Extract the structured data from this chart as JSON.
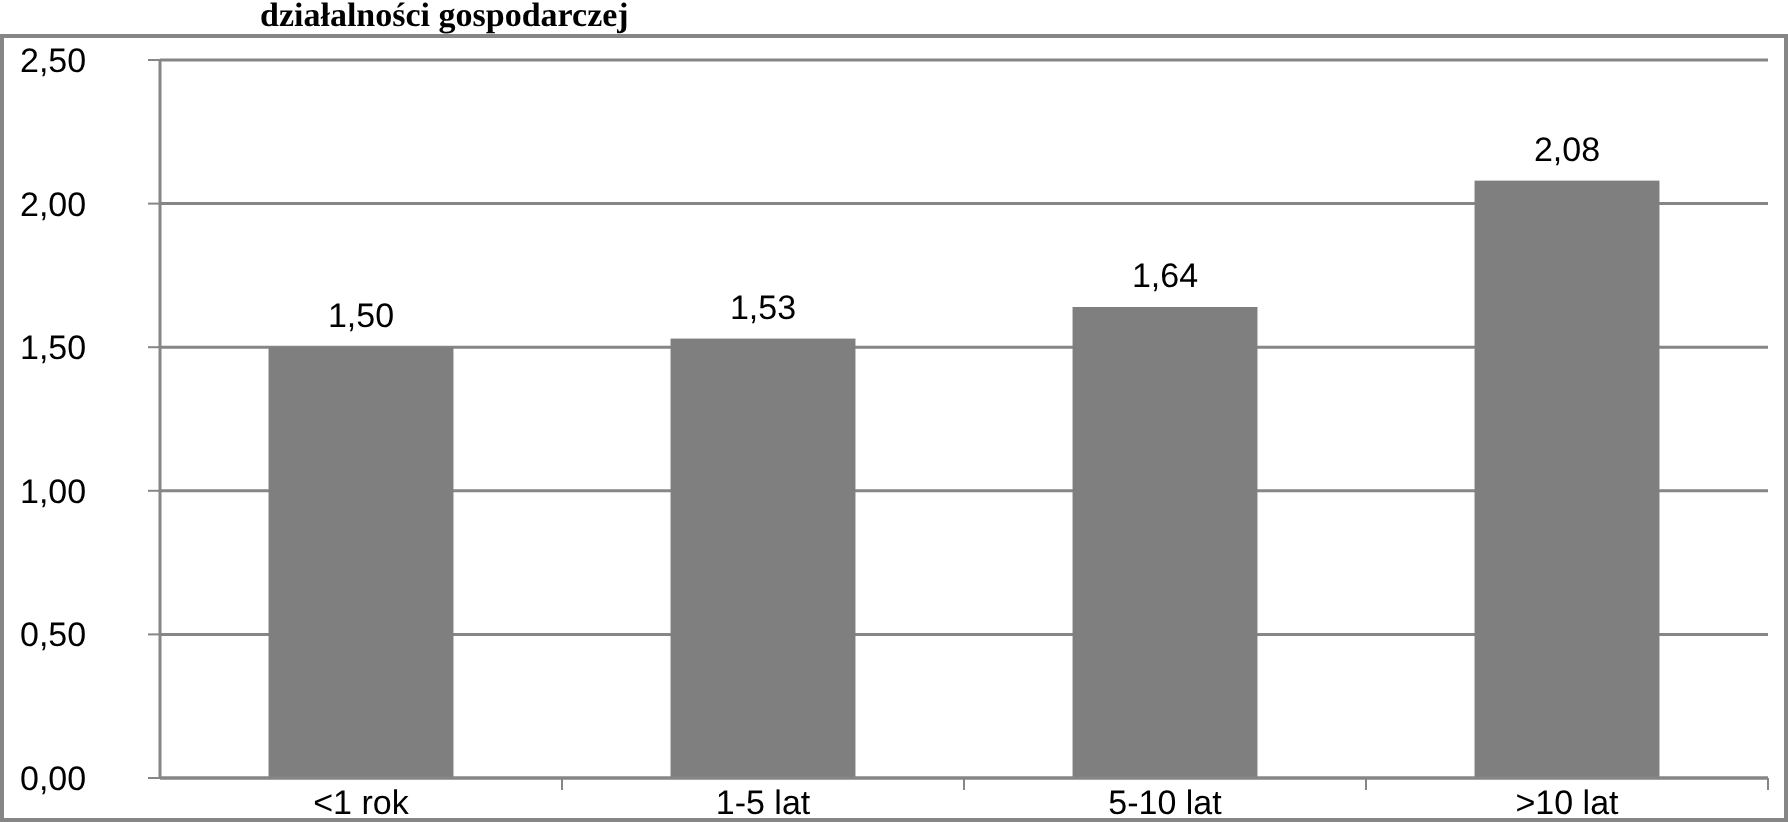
{
  "chart_data": {
    "type": "bar",
    "title": "działalności gospodarczej",
    "categories": [
      "<1 rok",
      "1-5 lat",
      "5-10 lat",
      ">10 lat"
    ],
    "values": [
      1.5,
      1.53,
      1.64,
      2.08
    ],
    "value_labels": [
      "1,50",
      "1,53",
      "1,64",
      "2,08"
    ],
    "color": "#7f7f7f",
    "ylim": [
      0,
      2.5
    ],
    "yticks": [
      {
        "value": 0,
        "label": "0,00"
      },
      {
        "value": 0.5,
        "label": "0,50"
      },
      {
        "value": 1,
        "label": "1,00"
      },
      {
        "value": 1.5,
        "label": "1,50"
      },
      {
        "value": 2,
        "label": "2,00"
      },
      {
        "value": 2.5,
        "label": "2,50"
      }
    ],
    "grid": "y"
  }
}
